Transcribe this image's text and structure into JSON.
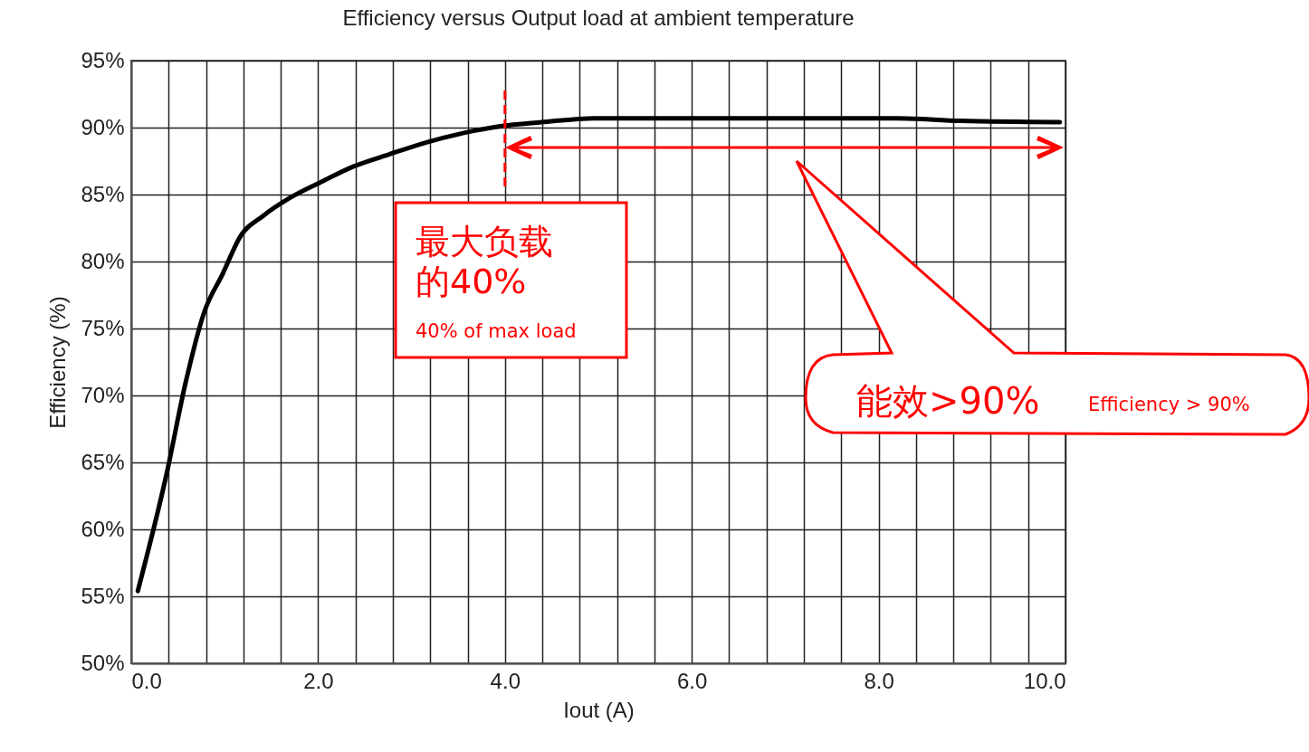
{
  "chart_data": {
    "type": "line",
    "title": "Efficiency versus Output load at ambient temperature",
    "xlabel": "Iout (A)",
    "ylabel": "Efficiency (%)",
    "x": [
      0.07,
      0.38,
      0.58,
      0.78,
      0.98,
      1.17,
      1.41,
      1.71,
      2.05,
      2.38,
      2.76,
      3.16,
      3.56,
      3.95,
      4.39,
      4.96,
      6.0,
      7.0,
      8.19,
      8.88,
      9.94
    ],
    "series": [
      {
        "color": "#000000",
        "values": [
          55.4,
          64.2,
          70.9,
          76.2,
          79.1,
          81.9,
          83.4,
          84.8,
          86.0,
          87.1,
          88.0,
          88.9,
          89.6,
          90.1,
          90.4,
          90.7,
          90.7,
          90.7,
          90.7,
          90.5,
          90.4
        ]
      }
    ],
    "xlim": [
      0,
      10
    ],
    "xticks": [
      {
        "value": 0,
        "label": "0.0"
      },
      {
        "value": 0.4,
        "label": null
      },
      {
        "value": 0.8,
        "label": null
      },
      {
        "value": 1.2,
        "label": null
      },
      {
        "value": 1.6,
        "label": null
      },
      {
        "value": 2,
        "label": "2.0"
      },
      {
        "value": 2.4,
        "label": null
      },
      {
        "value": 2.8,
        "label": null
      },
      {
        "value": 3.2,
        "label": null
      },
      {
        "value": 3.6,
        "label": null
      },
      {
        "value": 4,
        "label": "4.0"
      },
      {
        "value": 4.4,
        "label": null
      },
      {
        "value": 4.8,
        "label": null
      },
      {
        "value": 5.2,
        "label": null
      },
      {
        "value": 5.6,
        "label": null
      },
      {
        "value": 6,
        "label": "6.0"
      },
      {
        "value": 6.4,
        "label": null
      },
      {
        "value": 6.8,
        "label": null
      },
      {
        "value": 7.2,
        "label": null
      },
      {
        "value": 7.6,
        "label": null
      },
      {
        "value": 8,
        "label": "8.0"
      },
      {
        "value": 8.4,
        "label": null
      },
      {
        "value": 8.8,
        "label": null
      },
      {
        "value": 9.2,
        "label": null
      },
      {
        "value": 9.6,
        "label": null
      },
      {
        "value": 10,
        "label": "10.0"
      }
    ],
    "ylim": [
      50,
      95
    ],
    "yticks": [
      {
        "value": 50,
        "label": "50%"
      },
      {
        "value": 55,
        "label": "55%"
      },
      {
        "value": 60,
        "label": "60%"
      },
      {
        "value": 65,
        "label": "65%"
      },
      {
        "value": 70,
        "label": "70%"
      },
      {
        "value": 75,
        "label": "75%"
      },
      {
        "value": 80,
        "label": "80%"
      },
      {
        "value": 85,
        "label": "85%"
      },
      {
        "value": 90,
        "label": "90%"
      },
      {
        "value": 95,
        "label": "95%"
      }
    ],
    "grid": true,
    "marker": "none",
    "line_style": "solid",
    "ref_lines": [
      {
        "axis": "x",
        "value": 4,
        "color": "#ff0000",
        "line_style": "dashed"
      }
    ],
    "annotations": [
      "最大负载的40%",
      "40% of max load",
      "能效>90%",
      "Efficiency > 90%"
    ]
  }
}
